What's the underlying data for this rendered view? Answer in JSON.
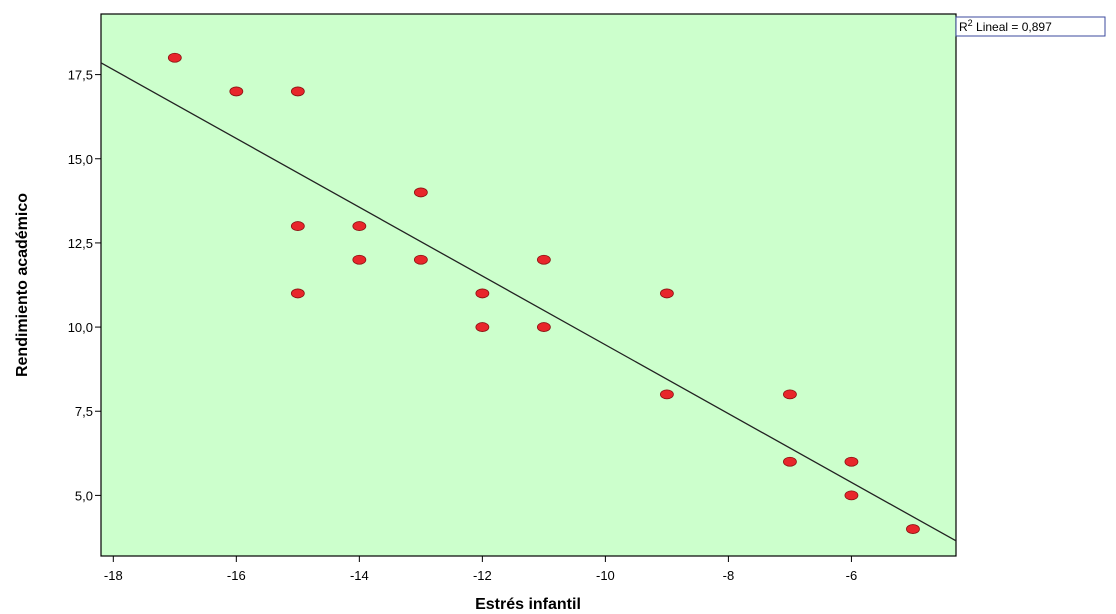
{
  "chart_data": {
    "type": "scatter",
    "title": "",
    "xlabel": "Estrés infantil",
    "ylabel": "Rendimiento académico",
    "xlim": [
      -18.2,
      -4.3
    ],
    "ylim": [
      3.2,
      19.3
    ],
    "xticks": [
      -18,
      -16,
      -14,
      -12,
      -10,
      -8,
      -6
    ],
    "xtick_labels": [
      "-18",
      "-16",
      "-14",
      "-12",
      "-10",
      "-8",
      "-6"
    ],
    "yticks": [
      5.0,
      7.5,
      10.0,
      12.5,
      15.0,
      17.5
    ],
    "ytick_labels": [
      "5,0",
      "7,5",
      "10,0",
      "12,5",
      "15,0",
      "17,5"
    ],
    "grid": false,
    "plot_background": "#ccffcc",
    "point_color": "#e8262b",
    "line_color": "#222222",
    "points": [
      {
        "x": -17,
        "y": 18
      },
      {
        "x": -16,
        "y": 17
      },
      {
        "x": -15,
        "y": 17
      },
      {
        "x": -13,
        "y": 14
      },
      {
        "x": -15,
        "y": 13
      },
      {
        "x": -14,
        "y": 13
      },
      {
        "x": -14,
        "y": 12
      },
      {
        "x": -13,
        "y": 12
      },
      {
        "x": -11,
        "y": 12
      },
      {
        "x": -15,
        "y": 11
      },
      {
        "x": -12,
        "y": 11
      },
      {
        "x": -9,
        "y": 11
      },
      {
        "x": -12,
        "y": 10
      },
      {
        "x": -11,
        "y": 10
      },
      {
        "x": -9,
        "y": 8
      },
      {
        "x": -7,
        "y": 8
      },
      {
        "x": -7,
        "y": 6
      },
      {
        "x": -6,
        "y": 6
      },
      {
        "x": -6,
        "y": 5
      },
      {
        "x": -5,
        "y": 4
      }
    ],
    "fit_line": {
      "type": "linear",
      "start": {
        "x": -18.2,
        "y": 17.85
      },
      "end": {
        "x": -4.3,
        "y": 3.65
      }
    },
    "annotation": {
      "r2_prefix": "R",
      "r2_superscript": "2",
      "r2_text": " Lineal = 0,897"
    }
  }
}
